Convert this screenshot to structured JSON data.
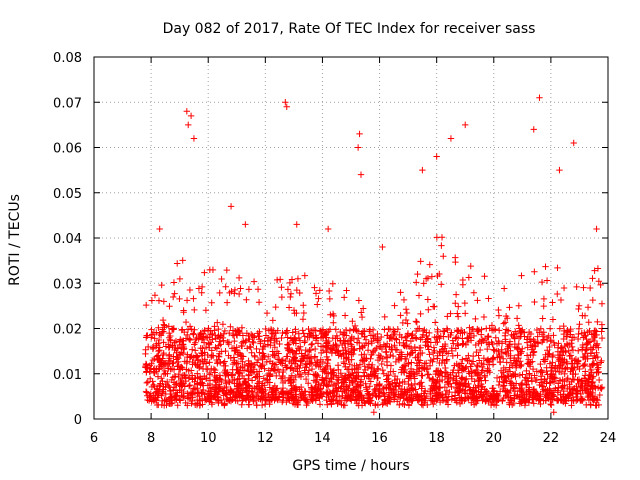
{
  "chart_data": {
    "type": "scatter",
    "title": "Day 082 of 2017, Rate Of TEC Index for receiver sass",
    "xlabel": "GPS time / hours",
    "ylabel": "ROTI / TECUs",
    "xlim": [
      6,
      24
    ],
    "ylim": [
      0,
      0.08
    ],
    "x_ticks": [
      6,
      8,
      10,
      12,
      14,
      16,
      18,
      20,
      22,
      24
    ],
    "x_tick_labels": [
      "6",
      "8",
      "10",
      "12",
      "14",
      "16",
      "18",
      "20",
      "22",
      "24"
    ],
    "y_ticks": [
      0,
      0.01,
      0.02,
      0.03,
      0.04,
      0.05,
      0.06,
      0.07,
      0.08
    ],
    "y_tick_labels": [
      "0",
      "0.01",
      "0.02",
      "0.03",
      "0.04",
      "0.05",
      "0.06",
      "0.07",
      "0.08"
    ],
    "grid": true,
    "marker": "+",
    "color": "#ff0000",
    "x_range_of_data": [
      7.8,
      23.8
    ],
    "series": [
      {
        "name": "ROTI",
        "notable_points": [
          {
            "x": 9.25,
            "y": 0.068
          },
          {
            "x": 9.4,
            "y": 0.067
          },
          {
            "x": 9.3,
            "y": 0.065
          },
          {
            "x": 9.5,
            "y": 0.062
          },
          {
            "x": 12.7,
            "y": 0.07
          },
          {
            "x": 12.75,
            "y": 0.069
          },
          {
            "x": 15.3,
            "y": 0.063
          },
          {
            "x": 15.25,
            "y": 0.06
          },
          {
            "x": 15.35,
            "y": 0.054
          },
          {
            "x": 18.5,
            "y": 0.062
          },
          {
            "x": 19.0,
            "y": 0.065
          },
          {
            "x": 21.6,
            "y": 0.071
          },
          {
            "x": 21.4,
            "y": 0.064
          },
          {
            "x": 22.8,
            "y": 0.061
          },
          {
            "x": 22.3,
            "y": 0.055
          },
          {
            "x": 17.5,
            "y": 0.055
          },
          {
            "x": 18.0,
            "y": 0.058
          },
          {
            "x": 10.8,
            "y": 0.047
          },
          {
            "x": 13.1,
            "y": 0.043
          },
          {
            "x": 14.2,
            "y": 0.042
          },
          {
            "x": 16.1,
            "y": 0.038
          },
          {
            "x": 23.6,
            "y": 0.042
          },
          {
            "x": 8.3,
            "y": 0.042
          },
          {
            "x": 11.3,
            "y": 0.043
          },
          {
            "x": 15.8,
            "y": 0.0015
          },
          {
            "x": 22.1,
            "y": 0.0015
          }
        ],
        "envelope": [
          {
            "x": 8.0,
            "typical_max": 0.028
          },
          {
            "x": 9.0,
            "typical_max": 0.04
          },
          {
            "x": 10.0,
            "typical_max": 0.035
          },
          {
            "x": 11.0,
            "typical_max": 0.032
          },
          {
            "x": 12.0,
            "typical_max": 0.03
          },
          {
            "x": 13.0,
            "typical_max": 0.033
          },
          {
            "x": 14.0,
            "typical_max": 0.03
          },
          {
            "x": 15.0,
            "typical_max": 0.03
          },
          {
            "x": 16.0,
            "typical_max": 0.024
          },
          {
            "x": 17.0,
            "typical_max": 0.03
          },
          {
            "x": 18.0,
            "typical_max": 0.042
          },
          {
            "x": 19.0,
            "typical_max": 0.035
          },
          {
            "x": 20.0,
            "typical_max": 0.03
          },
          {
            "x": 21.0,
            "typical_max": 0.032
          },
          {
            "x": 22.0,
            "typical_max": 0.036
          },
          {
            "x": 23.0,
            "typical_max": 0.03
          },
          {
            "x": 23.8,
            "typical_max": 0.035
          }
        ],
        "typical_min": 0.003,
        "dense_core_range": [
          0.004,
          0.02
        ]
      }
    ]
  }
}
